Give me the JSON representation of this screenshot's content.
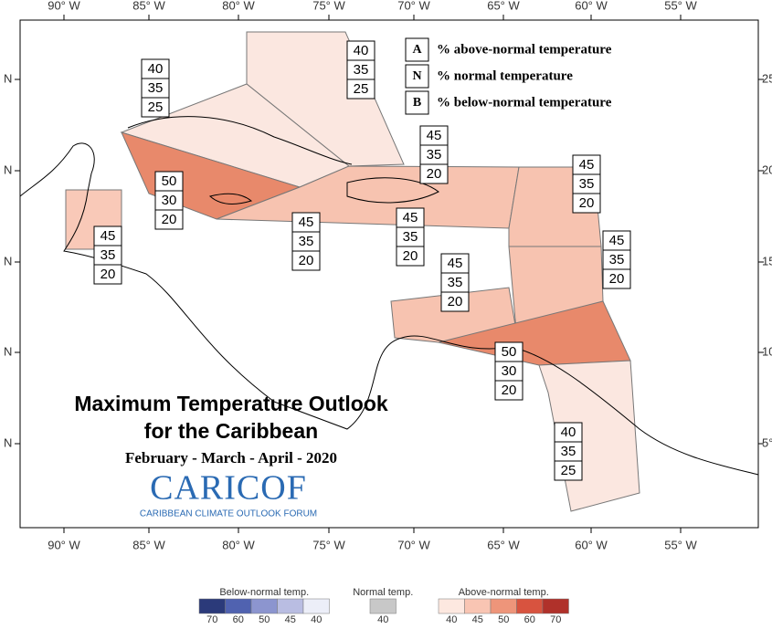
{
  "map": {
    "title": "Maximum Temperature Outlook",
    "title_line2": "for the Caribbean",
    "period": "February - March - April - 2020",
    "logo": "CARICOF",
    "logo_subtitle": "CARIBBEAN CLIMATE OUTLOOK FORUM",
    "lon_labels": [
      "90° W",
      "85° W",
      "80° W",
      "75° W",
      "70° W",
      "65° W",
      "60° W",
      "55° W"
    ],
    "lat_labels_left": [
      "N",
      "N",
      "N",
      "N",
      "N"
    ],
    "lat_labels_right": [
      "25",
      "20",
      "15",
      "10",
      "5°"
    ],
    "key": [
      {
        "letter": "A",
        "text": "% above-normal temperature"
      },
      {
        "letter": "N",
        "text": "% normal temperature"
      },
      {
        "letter": "B",
        "text": "% below-normal temperature"
      }
    ],
    "regions": [
      {
        "A": 40,
        "N": 35,
        "B": 25
      },
      {
        "A": 40,
        "N": 35,
        "B": 25
      },
      {
        "A": 50,
        "N": 30,
        "B": 20
      },
      {
        "A": 45,
        "N": 35,
        "B": 20
      },
      {
        "A": 45,
        "N": 35,
        "B": 20
      },
      {
        "A": 45,
        "N": 35,
        "B": 20
      },
      {
        "A": 45,
        "N": 35,
        "B": 20
      },
      {
        "A": 45,
        "N": 35,
        "B": 20
      },
      {
        "A": 45,
        "N": 35,
        "B": 20
      },
      {
        "A": 45,
        "N": 35,
        "B": 20
      },
      {
        "A": 50,
        "N": 30,
        "B": 20
      },
      {
        "A": 40,
        "N": 35,
        "B": 25
      }
    ],
    "color_legend": {
      "below": {
        "title": "Below-normal temp.",
        "labels": [
          70,
          60,
          50,
          45,
          40
        ]
      },
      "normal": {
        "title": "Normal temp.",
        "labels": [
          40
        ]
      },
      "above": {
        "title": "Above-normal temp.",
        "labels": [
          40,
          45,
          50,
          60,
          70
        ]
      }
    }
  }
}
